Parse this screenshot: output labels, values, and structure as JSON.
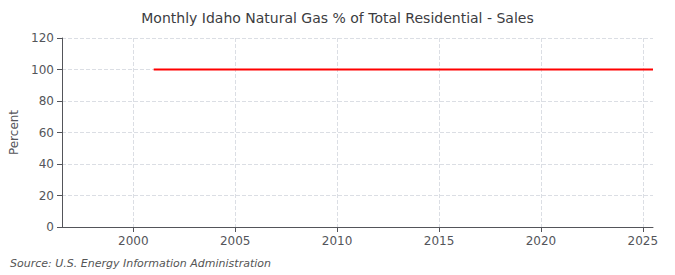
{
  "chart_data": {
    "type": "line",
    "title": "Monthly Idaho Natural Gas % of Total Residential - Sales",
    "ylabel": "Percent",
    "annotation": "Source: U.S. Energy Information Administration",
    "x": [
      2001.0,
      2025.5
    ],
    "values": [
      100,
      100
    ],
    "color": "#ff0000",
    "xlim": [
      1996.5,
      2025.5
    ],
    "xticks": [
      2000,
      2005,
      2010,
      2015,
      2020,
      2025
    ],
    "ylim": [
      0,
      120
    ],
    "yticks": [
      0,
      20,
      40,
      60,
      80,
      100,
      120
    ],
    "grid": true
  }
}
